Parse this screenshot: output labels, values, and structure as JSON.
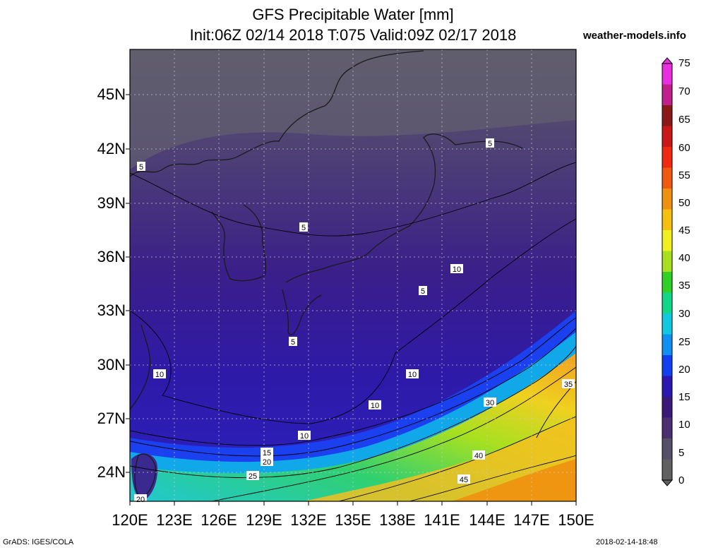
{
  "title": {
    "line1": "GFS Precipitable Water [mm]",
    "line2": "Init:06Z 02/14 2018 T:075 Valid:09Z 02/17 2018"
  },
  "site": "weather-models.info",
  "lat_labels": [
    "45N",
    "42N",
    "39N",
    "36N",
    "33N",
    "30N",
    "27N",
    "24N"
  ],
  "lon_labels": [
    "120E",
    "123E",
    "126E",
    "129E",
    "132E",
    "135E",
    "138E",
    "141E",
    "144E",
    "147E",
    "150E"
  ],
  "colorbar": {
    "labels": [
      "75",
      "70",
      "65",
      "60",
      "55",
      "50",
      "45",
      "40",
      "35",
      "30",
      "25",
      "20",
      "15",
      "10",
      "5",
      "0"
    ],
    "colors": [
      "#e830e0",
      "#c0208a",
      "#8a1a1a",
      "#c81818",
      "#f02a10",
      "#f05a10",
      "#f09010",
      "#f5c010",
      "#f0f020",
      "#a8e020",
      "#30d028",
      "#10d888",
      "#10c8e0",
      "#1090f0",
      "#1040f0",
      "#2a18b0",
      "#3a1a78",
      "#4a3070",
      "#555068",
      "#606060"
    ]
  },
  "contour_labels": [
    {
      "text": "5"
    },
    {
      "text": "5"
    },
    {
      "text": "5"
    },
    {
      "text": "5"
    },
    {
      "text": "5"
    },
    {
      "text": "10"
    },
    {
      "text": "10"
    },
    {
      "text": "10"
    },
    {
      "text": "10"
    },
    {
      "text": "10"
    },
    {
      "text": "15"
    },
    {
      "text": "20"
    },
    {
      "text": "25"
    },
    {
      "text": "30"
    },
    {
      "text": "35"
    },
    {
      "text": "40"
    },
    {
      "text": "45"
    },
    {
      "text": "20"
    }
  ],
  "footer": {
    "left": "GrADS: IGES/COLA",
    "right": "2018-02-14-18:48"
  }
}
